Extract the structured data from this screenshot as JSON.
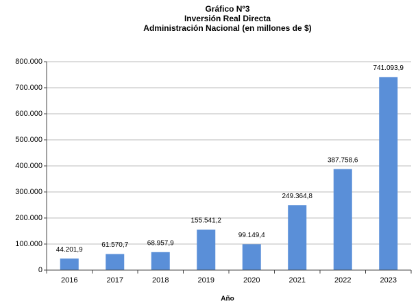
{
  "chart_data": {
    "type": "bar",
    "title": [
      "Gráfico Nº3",
      "Inversión Real Directa",
      "Administración Nacional (en millones de $)"
    ],
    "x_label": "Año",
    "categories": [
      "2016",
      "2017",
      "2018",
      "2019",
      "2020",
      "2021",
      "2022",
      "2023"
    ],
    "values": [
      44201.9,
      61570.7,
      68957.9,
      155541.2,
      99149.4,
      249364.8,
      387758.6,
      741093.9
    ],
    "value_labels": [
      "44.201,9",
      "61.570,7",
      "68.957,9",
      "155.541,2",
      "99.149,4",
      "249.364,8",
      "387.758,6",
      "741.093,9"
    ],
    "color": "#5a8fd8",
    "ylim": [
      0,
      800000
    ],
    "yticks": [
      0,
      {
        "value": 100000,
        "label": "100.000"
      },
      {
        "value": 200000,
        "label": "200.000"
      },
      {
        "value": 300000,
        "label": "300.000"
      },
      {
        "value": 400000,
        "label": "400.000"
      },
      {
        "value": 500000,
        "label": "500.000"
      },
      {
        "value": 600000,
        "label": "600.000"
      },
      {
        "value": 700000,
        "label": "700.000"
      },
      {
        "value": 800000,
        "label": "800.000"
      }
    ],
    "grid": true
  }
}
